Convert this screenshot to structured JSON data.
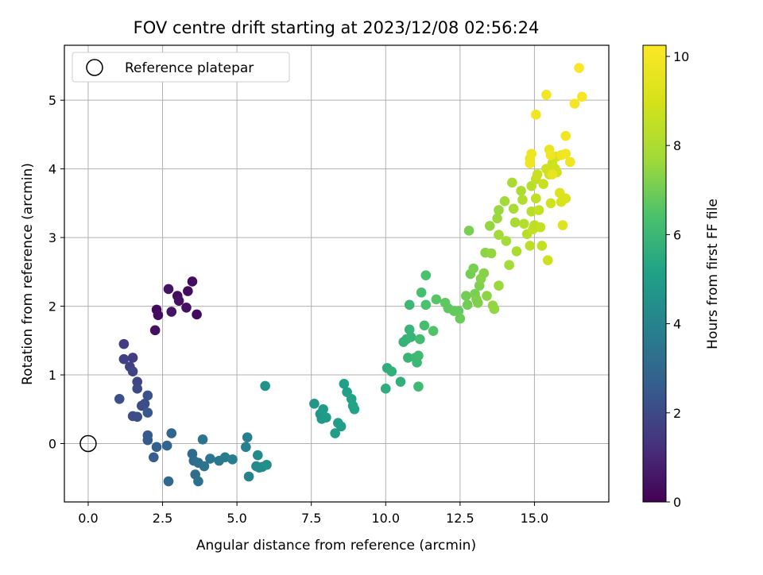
{
  "chart_data": {
    "type": "scatter",
    "title": "FOV centre drift starting at 2023/12/08 02:56:24",
    "xlabel": "Angular distance from reference (arcmin)",
    "ylabel": "Rotation from reference (arcmin)",
    "xlim": [
      -0.8,
      17.5
    ],
    "ylim": [
      -0.85,
      5.8
    ],
    "xticks": [
      0.0,
      2.5,
      5.0,
      7.5,
      10.0,
      12.5,
      15.0
    ],
    "xtick_labels": [
      "0.0",
      "2.5",
      "5.0",
      "7.5",
      "10.0",
      "12.5",
      "15.0"
    ],
    "yticks": [
      0,
      1,
      2,
      3,
      4,
      5
    ],
    "ytick_labels": [
      "0",
      "1",
      "2",
      "3",
      "4",
      "5"
    ],
    "grid": true,
    "legend": {
      "position": "top-left",
      "entries": [
        {
          "label": "Reference platepar",
          "marker": "hollow-circle"
        }
      ]
    },
    "colorbar": {
      "label": "Hours from first FF file",
      "range": [
        0,
        10.25
      ],
      "ticks": [
        0,
        2,
        4,
        6,
        8,
        10
      ],
      "tick_labels": [
        "0",
        "2",
        "4",
        "6",
        "8",
        "10"
      ],
      "colormap": "viridis"
    },
    "reference": {
      "x": 0,
      "y": 0
    },
    "series": [
      {
        "points": [
          {
            "x": 2.3,
            "y": 1.95,
            "c": 0.2
          },
          {
            "x": 2.35,
            "y": 1.87,
            "c": 0.3
          },
          {
            "x": 2.25,
            "y": 1.65,
            "c": 0.4
          },
          {
            "x": 2.7,
            "y": 2.25,
            "c": 0.5
          },
          {
            "x": 2.8,
            "y": 1.92,
            "c": 0.5
          },
          {
            "x": 3.0,
            "y": 2.15,
            "c": 0.3
          },
          {
            "x": 3.05,
            "y": 2.08,
            "c": 0.4
          },
          {
            "x": 3.3,
            "y": 1.98,
            "c": 0.4
          },
          {
            "x": 3.35,
            "y": 2.22,
            "c": 0.3
          },
          {
            "x": 3.5,
            "y": 2.36,
            "c": 0.3
          },
          {
            "x": 3.65,
            "y": 1.88,
            "c": 0.2
          },
          {
            "x": 1.2,
            "y": 1.45,
            "c": 1.6
          },
          {
            "x": 1.2,
            "y": 1.23,
            "c": 1.7
          },
          {
            "x": 1.4,
            "y": 1.12,
            "c": 1.7
          },
          {
            "x": 1.5,
            "y": 1.25,
            "c": 1.6
          },
          {
            "x": 1.5,
            "y": 1.05,
            "c": 1.8
          },
          {
            "x": 1.65,
            "y": 0.9,
            "c": 1.9
          },
          {
            "x": 1.65,
            "y": 0.8,
            "c": 2.0
          },
          {
            "x": 1.05,
            "y": 0.65,
            "c": 2.2
          },
          {
            "x": 1.5,
            "y": 0.4,
            "c": 2.1
          },
          {
            "x": 1.65,
            "y": 0.39,
            "c": 2.1
          },
          {
            "x": 1.8,
            "y": 0.55,
            "c": 2.0
          },
          {
            "x": 1.9,
            "y": 0.58,
            "c": 2.1
          },
          {
            "x": 2.0,
            "y": 0.7,
            "c": 2.3
          },
          {
            "x": 2.0,
            "y": 0.45,
            "c": 2.4
          },
          {
            "x": 2.0,
            "y": 0.12,
            "c": 2.5
          },
          {
            "x": 2.0,
            "y": 0.05,
            "c": 2.5
          },
          {
            "x": 2.2,
            "y": -0.2,
            "c": 2.6
          },
          {
            "x": 2.3,
            "y": -0.05,
            "c": 2.7
          },
          {
            "x": 2.65,
            "y": -0.03,
            "c": 2.9
          },
          {
            "x": 2.8,
            "y": 0.15,
            "c": 2.9
          },
          {
            "x": 2.7,
            "y": -0.55,
            "c": 3.0
          },
          {
            "x": 3.5,
            "y": -0.15,
            "c": 3.1
          },
          {
            "x": 3.55,
            "y": -0.25,
            "c": 3.2
          },
          {
            "x": 3.6,
            "y": -0.45,
            "c": 3.2
          },
          {
            "x": 3.7,
            "y": -0.55,
            "c": 3.3
          },
          {
            "x": 3.7,
            "y": -0.28,
            "c": 3.3
          },
          {
            "x": 3.85,
            "y": 0.06,
            "c": 3.4
          },
          {
            "x": 3.9,
            "y": -0.33,
            "c": 3.4
          },
          {
            "x": 4.1,
            "y": -0.22,
            "c": 3.5
          },
          {
            "x": 4.4,
            "y": -0.25,
            "c": 3.6
          },
          {
            "x": 4.6,
            "y": -0.2,
            "c": 3.7
          },
          {
            "x": 4.85,
            "y": -0.23,
            "c": 3.8
          },
          {
            "x": 5.3,
            "y": -0.05,
            "c": 3.9
          },
          {
            "x": 5.35,
            "y": 0.09,
            "c": 3.9
          },
          {
            "x": 5.4,
            "y": -0.48,
            "c": 4.0
          },
          {
            "x": 5.65,
            "y": -0.33,
            "c": 4.2
          },
          {
            "x": 5.7,
            "y": -0.17,
            "c": 4.2
          },
          {
            "x": 5.75,
            "y": -0.35,
            "c": 4.3
          },
          {
            "x": 5.85,
            "y": -0.34,
            "c": 4.3
          },
          {
            "x": 6.0,
            "y": -0.31,
            "c": 4.4
          },
          {
            "x": 5.95,
            "y": 0.84,
            "c": 4.6
          },
          {
            "x": 7.6,
            "y": 0.58,
            "c": 4.7
          },
          {
            "x": 7.8,
            "y": 0.43,
            "c": 4.8
          },
          {
            "x": 7.85,
            "y": 0.36,
            "c": 4.8
          },
          {
            "x": 7.9,
            "y": 0.5,
            "c": 4.9
          },
          {
            "x": 8.0,
            "y": 0.38,
            "c": 4.9
          },
          {
            "x": 8.3,
            "y": 0.15,
            "c": 5.0
          },
          {
            "x": 8.4,
            "y": 0.3,
            "c": 5.0
          },
          {
            "x": 8.5,
            "y": 0.25,
            "c": 5.0
          },
          {
            "x": 8.6,
            "y": 0.87,
            "c": 5.1
          },
          {
            "x": 8.7,
            "y": 0.75,
            "c": 5.1
          },
          {
            "x": 8.85,
            "y": 0.65,
            "c": 5.2
          },
          {
            "x": 8.9,
            "y": 0.55,
            "c": 5.2
          },
          {
            "x": 8.95,
            "y": 0.5,
            "c": 5.2
          },
          {
            "x": 10.0,
            "y": 0.8,
            "c": 5.6
          },
          {
            "x": 10.05,
            "y": 1.1,
            "c": 5.6
          },
          {
            "x": 10.2,
            "y": 1.05,
            "c": 5.7
          },
          {
            "x": 10.5,
            "y": 0.9,
            "c": 5.7
          },
          {
            "x": 10.6,
            "y": 1.48,
            "c": 5.8
          },
          {
            "x": 10.7,
            "y": 1.52,
            "c": 5.8
          },
          {
            "x": 10.75,
            "y": 1.25,
            "c": 5.9
          },
          {
            "x": 10.8,
            "y": 1.66,
            "c": 5.9
          },
          {
            "x": 10.8,
            "y": 2.02,
            "c": 6.0
          },
          {
            "x": 10.85,
            "y": 1.55,
            "c": 5.9
          },
          {
            "x": 11.0,
            "y": 1.25,
            "c": 6.0
          },
          {
            "x": 11.05,
            "y": 1.18,
            "c": 6.0
          },
          {
            "x": 11.1,
            "y": 1.28,
            "c": 6.1
          },
          {
            "x": 11.1,
            "y": 0.83,
            "c": 6.1
          },
          {
            "x": 11.15,
            "y": 1.52,
            "c": 6.2
          },
          {
            "x": 11.2,
            "y": 2.2,
            "c": 6.3
          },
          {
            "x": 11.3,
            "y": 1.72,
            "c": 6.3
          },
          {
            "x": 11.35,
            "y": 2.02,
            "c": 6.4
          },
          {
            "x": 11.35,
            "y": 2.45,
            "c": 6.4
          },
          {
            "x": 11.6,
            "y": 1.64,
            "c": 6.5
          },
          {
            "x": 11.7,
            "y": 2.1,
            "c": 6.6
          },
          {
            "x": 12.0,
            "y": 2.05,
            "c": 6.7
          },
          {
            "x": 12.1,
            "y": 1.97,
            "c": 6.7
          },
          {
            "x": 12.3,
            "y": 1.93,
            "c": 6.8
          },
          {
            "x": 12.45,
            "y": 1.93,
            "c": 6.8
          },
          {
            "x": 12.5,
            "y": 1.82,
            "c": 6.9
          },
          {
            "x": 12.7,
            "y": 2.15,
            "c": 7.0
          },
          {
            "x": 12.75,
            "y": 2.02,
            "c": 7.0
          },
          {
            "x": 12.8,
            "y": 3.1,
            "c": 7.1
          },
          {
            "x": 12.85,
            "y": 2.47,
            "c": 7.0
          },
          {
            "x": 12.95,
            "y": 2.55,
            "c": 7.1
          },
          {
            "x": 13.0,
            "y": 2.18,
            "c": 7.1
          },
          {
            "x": 13.05,
            "y": 2.1,
            "c": 7.2
          },
          {
            "x": 13.1,
            "y": 2.05,
            "c": 7.2
          },
          {
            "x": 13.15,
            "y": 2.3,
            "c": 7.2
          },
          {
            "x": 13.2,
            "y": 2.4,
            "c": 7.3
          },
          {
            "x": 13.3,
            "y": 2.48,
            "c": 7.3
          },
          {
            "x": 13.35,
            "y": 2.78,
            "c": 7.4
          },
          {
            "x": 13.4,
            "y": 2.15,
            "c": 7.4
          },
          {
            "x": 13.5,
            "y": 3.17,
            "c": 7.5
          },
          {
            "x": 13.55,
            "y": 2.77,
            "c": 7.5
          },
          {
            "x": 13.6,
            "y": 2.01,
            "c": 7.5
          },
          {
            "x": 13.65,
            "y": 1.96,
            "c": 7.5
          },
          {
            "x": 13.75,
            "y": 3.28,
            "c": 7.6
          },
          {
            "x": 13.8,
            "y": 3.4,
            "c": 7.6
          },
          {
            "x": 13.8,
            "y": 3.04,
            "c": 7.7
          },
          {
            "x": 13.8,
            "y": 2.3,
            "c": 7.6
          },
          {
            "x": 14.0,
            "y": 3.53,
            "c": 7.7
          },
          {
            "x": 14.05,
            "y": 2.95,
            "c": 7.8
          },
          {
            "x": 14.15,
            "y": 2.6,
            "c": 7.8
          },
          {
            "x": 14.25,
            "y": 3.8,
            "c": 7.9
          },
          {
            "x": 14.3,
            "y": 3.42,
            "c": 7.9
          },
          {
            "x": 14.35,
            "y": 3.22,
            "c": 7.9
          },
          {
            "x": 14.4,
            "y": 2.8,
            "c": 8.0
          },
          {
            "x": 14.55,
            "y": 3.68,
            "c": 8.0
          },
          {
            "x": 14.6,
            "y": 3.55,
            "c": 8.1
          },
          {
            "x": 14.65,
            "y": 3.2,
            "c": 8.2
          },
          {
            "x": 14.75,
            "y": 3.05,
            "c": 8.3
          },
          {
            "x": 14.85,
            "y": 2.88,
            "c": 8.4
          },
          {
            "x": 14.9,
            "y": 3.38,
            "c": 8.3
          },
          {
            "x": 14.9,
            "y": 3.75,
            "c": 8.3
          },
          {
            "x": 14.95,
            "y": 3.12,
            "c": 8.6
          },
          {
            "x": 15.0,
            "y": 3.18,
            "c": 8.4
          },
          {
            "x": 15.05,
            "y": 3.85,
            "c": 8.5
          },
          {
            "x": 15.05,
            "y": 3.57,
            "c": 8.5
          },
          {
            "x": 15.1,
            "y": 3.92,
            "c": 8.7
          },
          {
            "x": 15.15,
            "y": 3.4,
            "c": 8.6
          },
          {
            "x": 15.2,
            "y": 3.15,
            "c": 8.6
          },
          {
            "x": 15.25,
            "y": 2.88,
            "c": 8.6
          },
          {
            "x": 15.3,
            "y": 3.78,
            "c": 8.7
          },
          {
            "x": 15.4,
            "y": 4.0,
            "c": 8.8
          },
          {
            "x": 15.45,
            "y": 2.67,
            "c": 8.8
          },
          {
            "x": 15.5,
            "y": 3.92,
            "c": 8.9
          },
          {
            "x": 15.55,
            "y": 3.5,
            "c": 8.9
          },
          {
            "x": 15.6,
            "y": 4.08,
            "c": 8.8
          },
          {
            "x": 15.7,
            "y": 4.0,
            "c": 8.8
          },
          {
            "x": 15.75,
            "y": 3.95,
            "c": 8.9
          },
          {
            "x": 15.75,
            "y": 4.18,
            "c": 9.0
          },
          {
            "x": 15.85,
            "y": 3.65,
            "c": 9.2
          },
          {
            "x": 15.9,
            "y": 3.52,
            "c": 9.1
          },
          {
            "x": 15.95,
            "y": 3.18,
            "c": 9.3
          },
          {
            "x": 16.05,
            "y": 3.57,
            "c": 9.2
          },
          {
            "x": 14.85,
            "y": 4.15,
            "c": 9.7
          },
          {
            "x": 14.85,
            "y": 4.08,
            "c": 9.8
          },
          {
            "x": 14.9,
            "y": 4.22,
            "c": 9.8
          },
          {
            "x": 15.05,
            "y": 4.79,
            "c": 9.9
          },
          {
            "x": 15.4,
            "y": 5.08,
            "c": 10.0
          },
          {
            "x": 15.5,
            "y": 4.28,
            "c": 9.7
          },
          {
            "x": 15.55,
            "y": 4.2,
            "c": 9.8
          },
          {
            "x": 15.6,
            "y": 3.92,
            "c": 9.6
          },
          {
            "x": 15.9,
            "y": 4.2,
            "c": 9.8
          },
          {
            "x": 16.05,
            "y": 4.48,
            "c": 9.9
          },
          {
            "x": 16.05,
            "y": 4.22,
            "c": 9.9
          },
          {
            "x": 16.2,
            "y": 4.1,
            "c": 9.8
          },
          {
            "x": 16.35,
            "y": 4.95,
            "c": 10.0
          },
          {
            "x": 16.5,
            "y": 5.47,
            "c": 10.2
          },
          {
            "x": 16.6,
            "y": 5.05,
            "c": 10.1
          }
        ]
      }
    ]
  }
}
